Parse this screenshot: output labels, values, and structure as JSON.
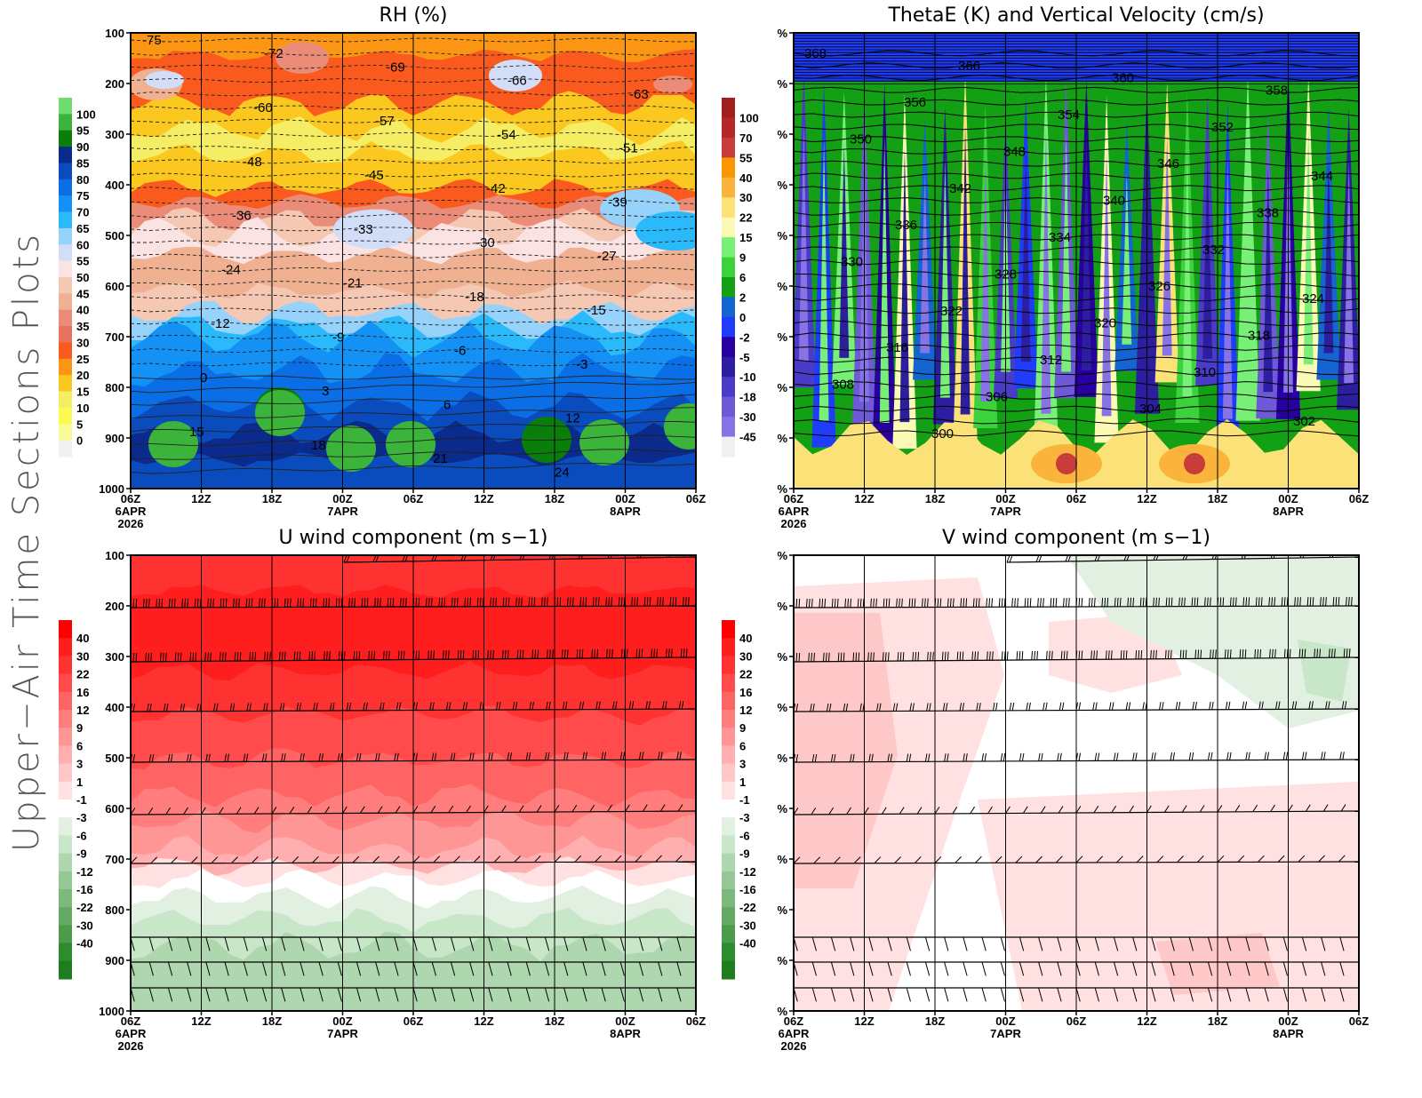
{
  "page": {
    "side_title": "Upper−Air Time Sections Plots"
  },
  "time_axis": {
    "ticks": [
      "06Z",
      "12Z",
      "18Z",
      "00Z",
      "06Z",
      "12Z",
      "18Z",
      "00Z",
      "06Z"
    ],
    "dates": [
      {
        "tick_index": 0,
        "lines": [
          "6APR",
          "2026"
        ]
      },
      {
        "tick_index": 3,
        "lines": [
          "7APR"
        ]
      },
      {
        "tick_index": 7,
        "lines": [
          "8APR"
        ]
      }
    ]
  },
  "chart_data": [
    {
      "id": "rh",
      "type": "heatmap",
      "title": "RH (%)",
      "xlabel": "",
      "ylabel": "",
      "x_ticks": [
        "06Z",
        "12Z",
        "18Z",
        "00Z",
        "06Z",
        "12Z",
        "18Z",
        "00Z",
        "06Z"
      ],
      "y_ticks": [
        "100",
        "200",
        "300",
        "400",
        "500",
        "600",
        "700",
        "800",
        "900",
        "1000"
      ],
      "ylim": [
        1000,
        100
      ],
      "colorbar": {
        "labels": [
          "100",
          "95",
          "90",
          "85",
          "80",
          "75",
          "70",
          "65",
          "60",
          "55",
          "50",
          "45",
          "40",
          "35",
          "30",
          "25",
          "20",
          "15",
          "10",
          "5",
          "0"
        ],
        "colors": [
          "#6fdc70",
          "#3cb43c",
          "#0a7d0a",
          "#0a2a8c",
          "#0a4cbe",
          "#0a6ee6",
          "#1491f5",
          "#2ab9fa",
          "#96d2fa",
          "#d2def8",
          "#fbe3e3",
          "#f5c8b4",
          "#f0b092",
          "#ea8c78",
          "#e6735f",
          "#fa5a1e",
          "#fa9614",
          "#fac81e",
          "#f5ee64",
          "#fafa50",
          "#fafa96",
          "#f0f0f0"
        ]
      },
      "temperature_contours": [
        "-75",
        "-72",
        "-69",
        "-66",
        "-63",
        "-60",
        "-57",
        "-54",
        "-51",
        "-48",
        "-45",
        "-42",
        "-39",
        "-36",
        "-33",
        "-30",
        "-27",
        "-24",
        "-21",
        "-18",
        "-15",
        "-12",
        "-9",
        "-6",
        "-3",
        "0",
        "3",
        "6",
        "12",
        "15",
        "18",
        "21",
        "24"
      ]
    },
    {
      "id": "thetae",
      "type": "heatmap",
      "title": "ThetaE (K) and Vertical Velocity (cm/s)",
      "x_ticks": [
        "06Z",
        "12Z",
        "18Z",
        "00Z",
        "06Z",
        "12Z",
        "18Z",
        "00Z",
        "06Z"
      ],
      "y_ticks": [
        "%",
        "%",
        "%",
        "%",
        "%",
        "%",
        "%",
        "%",
        "%",
        "%"
      ],
      "colorbar": {
        "labels": [
          "100",
          "70",
          "55",
          "40",
          "30",
          "22",
          "15",
          "9",
          "6",
          "2",
          "0",
          "-2",
          "-5",
          "-10",
          "-18",
          "-30",
          "-45"
        ],
        "colors": [
          "#a01e1e",
          "#b42828",
          "#c83c3c",
          "#fa9600",
          "#fab43c",
          "#fae178",
          "#fafab4",
          "#78f078",
          "#3cd23c",
          "#14a014",
          "#1464d2",
          "#1e3cfa",
          "#2800a0",
          "#2d1ea0",
          "#4b3cc8",
          "#6e5ad7",
          "#8773e6",
          "#f0f0f0"
        ]
      },
      "thetae_contours": [
        "368",
        "366",
        "360",
        "358",
        "356",
        "354",
        "352",
        "350",
        "348",
        "346",
        "344",
        "342",
        "340",
        "338",
        "336",
        "334",
        "332",
        "330",
        "328",
        "326",
        "324",
        "322",
        "320",
        "318",
        "316",
        "312",
        "310",
        "308",
        "306",
        "304",
        "302",
        "300"
      ]
    },
    {
      "id": "uwind",
      "type": "heatmap",
      "title": "U wind component (m s−1)",
      "x_ticks": [
        "06Z",
        "12Z",
        "18Z",
        "00Z",
        "06Z",
        "12Z",
        "18Z",
        "00Z",
        "06Z"
      ],
      "y_ticks": [
        "100",
        "200",
        "300",
        "400",
        "500",
        "600",
        "700",
        "800",
        "900",
        "1000"
      ],
      "ylim": [
        1000,
        100
      ],
      "colorbar": {
        "labels": [
          "40",
          "30",
          "22",
          "16",
          "12",
          "9",
          "6",
          "3",
          "1",
          "-1",
          "-3",
          "-6",
          "-9",
          "-12",
          "-16",
          "-22",
          "-30",
          "-40"
        ],
        "colors": [
          "#ff0000",
          "#ff1e1e",
          "#ff3232",
          "#ff4b4b",
          "#ff6464",
          "#ff7d7d",
          "#ff9696",
          "#ffafaf",
          "#ffc8c8",
          "#ffe1e1",
          "#ffffff",
          "#e1f0e1",
          "#c8e6c8",
          "#afd7af",
          "#96c896",
          "#7db97d",
          "#64aa64",
          "#4b9b4b",
          "#2d8c2d",
          "#1e7d1e"
        ]
      },
      "barb_levels": [
        "100",
        "200",
        "300",
        "400",
        "500",
        "600",
        "700",
        "850",
        "900",
        "950"
      ]
    },
    {
      "id": "vwind",
      "type": "heatmap",
      "title": "V wind component (m s−1)",
      "x_ticks": [
        "06Z",
        "12Z",
        "18Z",
        "00Z",
        "06Z",
        "12Z",
        "18Z",
        "00Z",
        "06Z"
      ],
      "y_ticks": [
        "%",
        "%",
        "%",
        "%",
        "%",
        "%",
        "%",
        "%",
        "%",
        "%"
      ],
      "colorbar": {
        "labels": [
          "40",
          "30",
          "22",
          "16",
          "12",
          "9",
          "6",
          "3",
          "1",
          "-1",
          "-3",
          "-6",
          "-9",
          "-12",
          "-16",
          "-22",
          "-30",
          "-40"
        ],
        "colors": [
          "#ff0000",
          "#ff1e1e",
          "#ff3232",
          "#ff4b4b",
          "#ff6464",
          "#ff7d7d",
          "#ff9696",
          "#ffafaf",
          "#ffc8c8",
          "#ffe1e1",
          "#ffffff",
          "#e1f0e1",
          "#c8e6c8",
          "#afd7af",
          "#96c896",
          "#7db97d",
          "#64aa64",
          "#4b9b4b",
          "#2d8c2d",
          "#1e7d1e"
        ]
      }
    }
  ]
}
